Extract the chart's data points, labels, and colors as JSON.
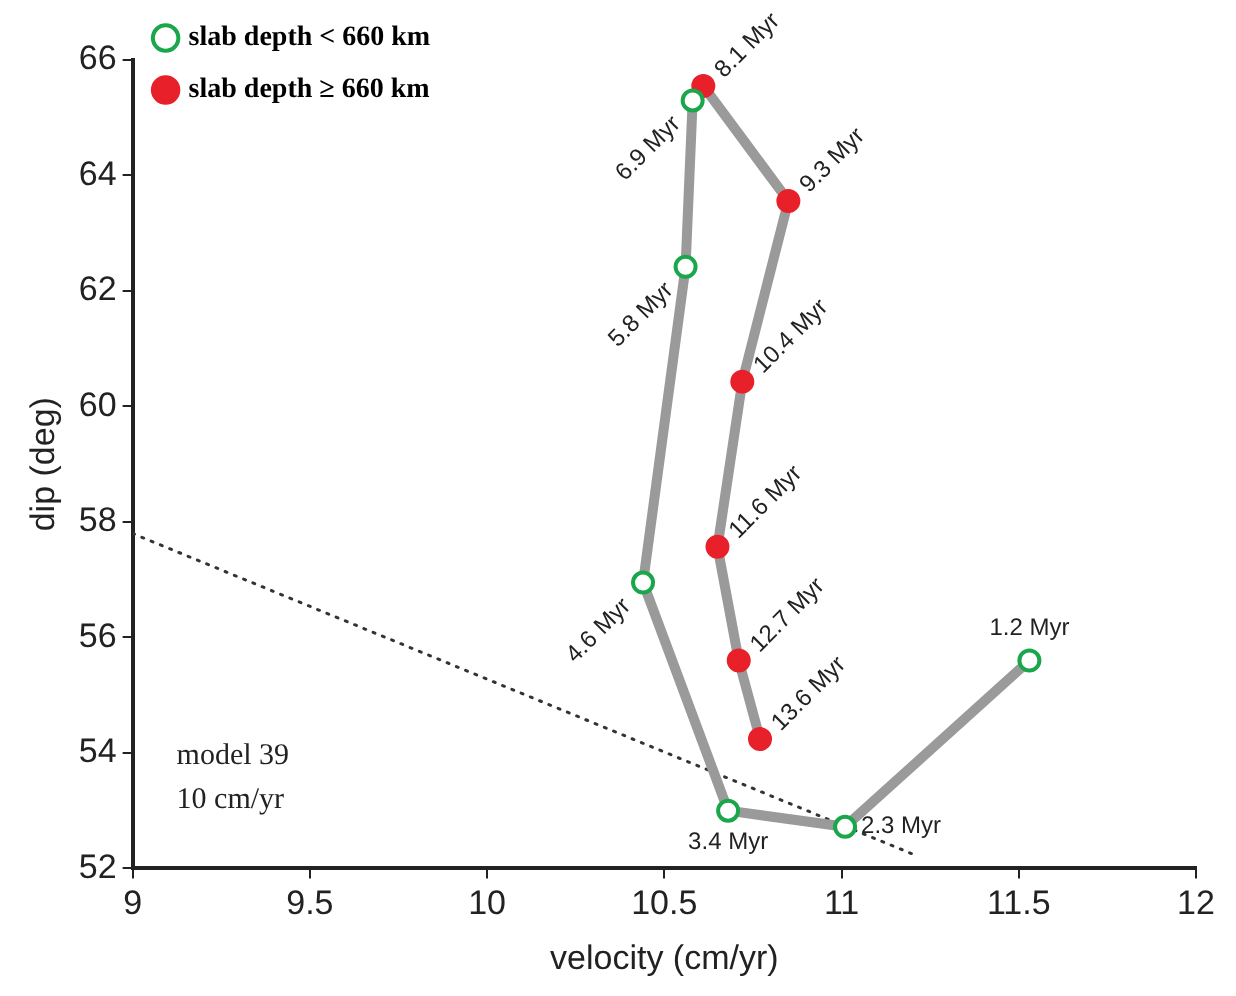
{
  "chart_data": {
    "type": "scatter",
    "xlabel": "velocity (cm/yr)",
    "ylabel": "dip (deg)",
    "xlim": [
      9,
      12
    ],
    "xticks": [
      9,
      9.5,
      10,
      10.5,
      11,
      11.5,
      12
    ],
    "ylim": [
      52,
      66
    ],
    "yticks": [
      52,
      54,
      56,
      58,
      60,
      62,
      64,
      66
    ],
    "grid": false,
    "legend": "top left",
    "annotations": [
      {
        "text": "1.2 Myr",
        "x": 11.53,
        "y": 55.6
      },
      {
        "text": "2.3 Myr",
        "x": 11.01,
        "y": 52.72
      },
      {
        "text": "3.4 Myr",
        "x": 10.68,
        "y": 53.0
      },
      {
        "text": "4.6 Myr",
        "x": 10.44,
        "y": 56.95
      },
      {
        "text": "5.8 Myr",
        "x": 10.56,
        "y": 62.42
      },
      {
        "text": "6.9 Myr",
        "x": 10.58,
        "y": 65.3
      },
      {
        "text": "8.1 Myr",
        "x": 10.61,
        "y": 65.55
      },
      {
        "text": "9.3 Myr",
        "x": 10.85,
        "y": 63.56
      },
      {
        "text": "10.4 Myr",
        "x": 10.72,
        "y": 60.43
      },
      {
        "text": "11.6 Myr",
        "x": 10.65,
        "y": 57.57
      },
      {
        "text": "12.7 Myr",
        "x": 10.71,
        "y": 55.6
      },
      {
        "text": "13.6 Myr",
        "x": 10.77,
        "y": 54.24
      },
      "model 39",
      "10 cm/yr"
    ],
    "series": [
      {
        "type": "line",
        "color": "#9a9a9a",
        "marker": "none",
        "x": [
          11.53,
          11.01,
          10.68,
          10.44,
          10.56,
          10.58,
          10.61,
          10.85,
          10.72,
          10.65,
          10.71,
          10.77
        ],
        "values": [
          55.6,
          52.72,
          53.0,
          56.95,
          62.42,
          65.3,
          65.55,
          63.56,
          60.43,
          57.57,
          55.6,
          54.24
        ]
      },
      {
        "type": "line",
        "color": "#333333",
        "marker": "none",
        "line_style": "dotted",
        "x": [
          9,
          11.2
        ],
        "values": [
          57.8,
          52.25
        ]
      },
      {
        "type": "scatter",
        "name": "slab depth < 660 km",
        "color": "#1aa64a",
        "marker": "circle",
        "x": [
          11.53,
          11.01,
          10.68,
          10.44,
          10.56,
          10.58
        ],
        "values": [
          55.6,
          52.72,
          53.0,
          56.95,
          62.42,
          65.3
        ]
      },
      {
        "type": "scatter",
        "name": "slab depth ≥ 660 km",
        "color": "#e8202a",
        "marker": "circle",
        "x": [
          10.61,
          10.85,
          10.72,
          10.65,
          10.71,
          10.77
        ],
        "values": [
          65.55,
          63.56,
          60.43,
          57.57,
          55.6,
          54.24
        ]
      }
    ]
  }
}
